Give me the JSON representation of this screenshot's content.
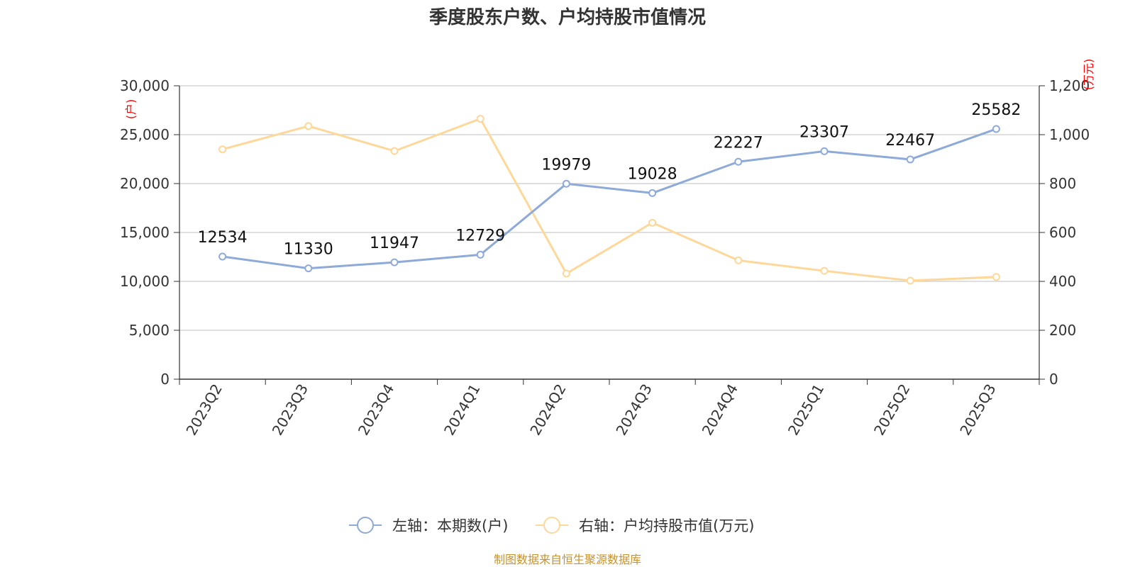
{
  "chart_data": {
    "type": "line",
    "title": "季度股东户数、户均持股市值情况",
    "categories": [
      "2023Q2",
      "2023Q3",
      "2023Q4",
      "2024Q1",
      "2024Q2",
      "2024Q3",
      "2024Q4",
      "2025Q1",
      "2025Q2",
      "2025Q3"
    ],
    "left_axis": {
      "unit": "(户)",
      "ylim": [
        0,
        30000
      ],
      "ticks": [
        "0",
        "5,000",
        "10,000",
        "15,000",
        "20,000",
        "25,000",
        "30,000"
      ]
    },
    "right_axis": {
      "unit": "(万元)",
      "ylim": [
        0,
        1200
      ],
      "ticks": [
        "0",
        "200",
        "400",
        "600",
        "800",
        "1,000",
        "1,200"
      ]
    },
    "grid": true,
    "legend_position": "bottom-center",
    "series": [
      {
        "name": "左轴：本期数(户)",
        "axis": "left",
        "color": "#8eaad8",
        "values": [
          12534,
          11330,
          11947,
          12729,
          19979,
          19028,
          22227,
          23307,
          22467,
          25582
        ],
        "labels": [
          "12534",
          "11330",
          "11947",
          "12729",
          "19979",
          "19028",
          "22227",
          "23307",
          "22467",
          "25582"
        ]
      },
      {
        "name": "右轴：户均持股市值(万元)",
        "axis": "right",
        "color": "#fdd89a",
        "values": [
          940,
          1035,
          933,
          1065,
          432,
          640,
          486,
          443,
          403,
          418
        ]
      }
    ]
  },
  "source": "制图数据来自恒生聚源数据库"
}
